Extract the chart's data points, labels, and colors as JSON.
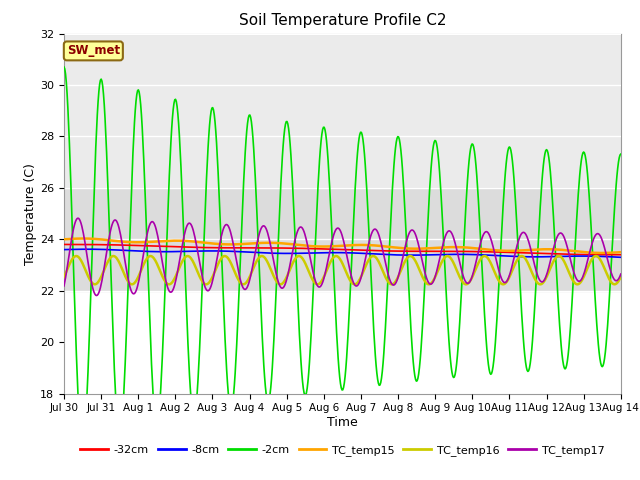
{
  "title": "Soil Temperature Profile C2",
  "xlabel": "Time",
  "ylabel": "Temperature (C)",
  "ylim": [
    18,
    32
  ],
  "yticks": [
    18,
    20,
    22,
    24,
    26,
    28,
    30,
    32
  ],
  "xtick_labels": [
    "Jul 30",
    "Jul 31",
    "Aug 1",
    "Aug 2",
    "Aug 3",
    "Aug 4",
    "Aug 5",
    "Aug 6",
    "Aug 7",
    "Aug 8",
    "Aug 9",
    "Aug 10",
    "Aug 11",
    "Aug 12",
    "Aug 13",
    "Aug 14"
  ],
  "annotation_text": "SW_met",
  "annotation_color": "#8B0000",
  "annotation_bg": "#FFFF99",
  "annotation_border": "#8B6914",
  "series": {
    "neg32cm": {
      "color": "#FF0000",
      "label": "-32cm",
      "lw": 1.2
    },
    "neg8cm": {
      "color": "#0000FF",
      "label": "-8cm",
      "lw": 1.2
    },
    "neg2cm": {
      "color": "#00DD00",
      "label": "-2cm",
      "lw": 1.2
    },
    "TC15": {
      "color": "#FFA500",
      "label": "TC_temp15",
      "lw": 1.8
    },
    "TC16": {
      "color": "#CCCC00",
      "label": "TC_temp16",
      "lw": 1.8
    },
    "TC17": {
      "color": "#AA00AA",
      "label": "TC_temp17",
      "lw": 1.2
    }
  },
  "bg_plot": "#FFFFFF",
  "bg_band1_lo": 22,
  "bg_band1_hi": 26,
  "bg_band1_color": "#DCDCDC",
  "bg_band2_lo": 26,
  "bg_band2_hi": 32,
  "bg_band2_color": "#EBEBEB"
}
